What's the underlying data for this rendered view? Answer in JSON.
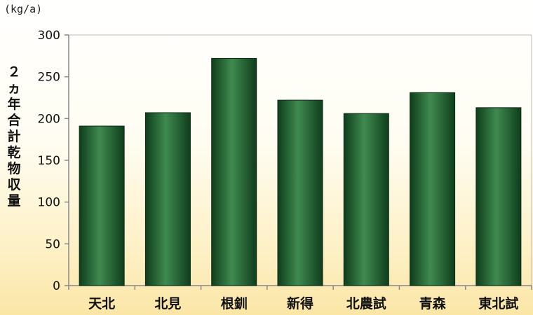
{
  "chart_data": {
    "type": "bar",
    "unit_label": "(kg/a)",
    "ylabel": "２ヵ年合計乾物収量",
    "xlabel": "",
    "categories": [
      "天北",
      "北見",
      "根釧",
      "新得",
      "北農試",
      "青森",
      "東北試"
    ],
    "values": [
      191,
      207,
      272,
      222,
      206,
      231,
      213
    ],
    "ylim": [
      0,
      300
    ],
    "yticks": [
      0,
      50,
      100,
      150,
      200,
      250,
      300
    ],
    "grid": false,
    "legend": "none",
    "colors": {
      "bar_dark": "#0f3d1c",
      "bar_light": "#3f8a4f",
      "axis": "#888888",
      "background_bottom": "#fbe6a6"
    }
  }
}
